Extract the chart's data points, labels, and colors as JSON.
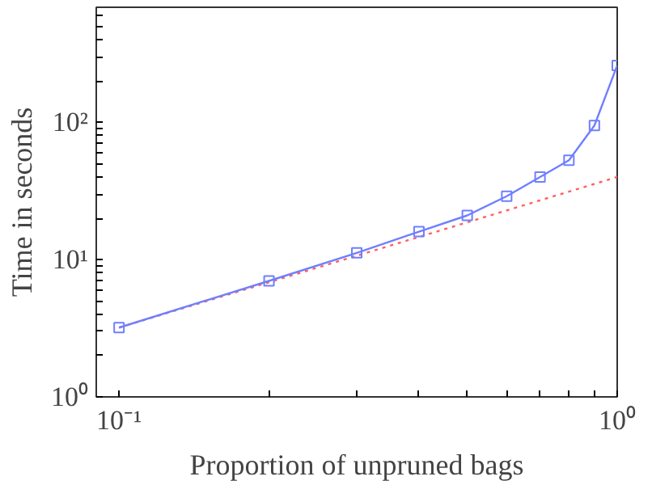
{
  "chart_data": {
    "type": "line",
    "xlabel": "Proportion of unpruned bags",
    "ylabel": "Time in seconds",
    "log": "xy",
    "grid": false,
    "xlim": [
      0.09,
      1
    ],
    "ylim": [
      1,
      690
    ],
    "xticks": [
      {
        "value": 0.1,
        "label": "10⁻¹"
      },
      {
        "value": 0.2,
        "label": null
      },
      {
        "value": 0.3,
        "label": null
      },
      {
        "value": 0.4,
        "label": null
      },
      {
        "value": 0.5,
        "label": null
      },
      {
        "value": 0.6,
        "label": null
      },
      {
        "value": 0.7,
        "label": null
      },
      {
        "value": 0.8,
        "label": null
      },
      {
        "value": 0.9,
        "label": null
      },
      {
        "value": 1,
        "label": "10⁰"
      }
    ],
    "yticks": [
      {
        "value": 1,
        "label": "10⁰"
      },
      {
        "value": 2,
        "label": null
      },
      {
        "value": 3,
        "label": null
      },
      {
        "value": 4,
        "label": null
      },
      {
        "value": 5,
        "label": null
      },
      {
        "value": 6,
        "label": null
      },
      {
        "value": 7,
        "label": null
      },
      {
        "value": 8,
        "label": null
      },
      {
        "value": 9,
        "label": null
      },
      {
        "value": 10,
        "label": "10¹"
      },
      {
        "value": 20,
        "label": null
      },
      {
        "value": 30,
        "label": null
      },
      {
        "value": 40,
        "label": null
      },
      {
        "value": 50,
        "label": null
      },
      {
        "value": 60,
        "label": null
      },
      {
        "value": 70,
        "label": null
      },
      {
        "value": 80,
        "label": null
      },
      {
        "value": 90,
        "label": null
      },
      {
        "value": 100,
        "label": "10²"
      },
      {
        "value": 200,
        "label": null
      },
      {
        "value": 300,
        "label": null
      },
      {
        "value": 400,
        "label": null
      },
      {
        "value": 500,
        "label": null
      },
      {
        "value": 600,
        "label": null
      }
    ],
    "series": [
      {
        "color": "#ff6060",
        "line_style": "dotted",
        "marker": "none",
        "x": [
          0.1,
          1
        ],
        "values": [
          3.2,
          40
        ]
      },
      {
        "color": "#6f7fff",
        "line_style": "solid",
        "marker": "square",
        "x": [
          0.1,
          0.2,
          0.3,
          0.4,
          0.5,
          0.6,
          0.7,
          0.8,
          0.9,
          1
        ],
        "values": [
          3.2,
          7.0,
          11.2,
          16,
          21,
          29,
          40,
          53,
          95,
          260
        ]
      }
    ]
  }
}
